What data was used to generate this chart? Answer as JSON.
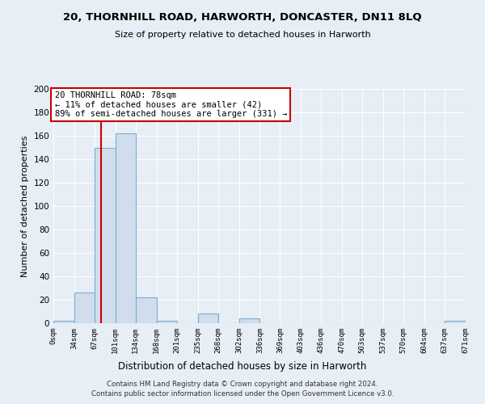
{
  "title": "20, THORNHILL ROAD, HARWORTH, DONCASTER, DN11 8LQ",
  "subtitle": "Size of property relative to detached houses in Harworth",
  "xlabel": "Distribution of detached houses by size in Harworth",
  "ylabel": "Number of detached properties",
  "bin_edges": [
    0,
    34,
    67,
    101,
    134,
    168,
    201,
    235,
    268,
    302,
    336,
    369,
    403,
    436,
    470,
    503,
    537,
    570,
    604,
    637,
    671
  ],
  "bar_heights": [
    2,
    26,
    150,
    162,
    22,
    2,
    0,
    8,
    0,
    4,
    0,
    0,
    0,
    0,
    0,
    0,
    0,
    0,
    0,
    2
  ],
  "bar_color": "#cfdded",
  "bar_edge_color": "#7aaed0",
  "property_size": 78,
  "annotation_line1": "20 THORNHILL ROAD: 78sqm",
  "annotation_line2": "← 11% of detached houses are smaller (42)",
  "annotation_line3": "89% of semi-detached houses are larger (331) →",
  "annotation_box_color": "#ffffff",
  "annotation_box_edge_color": "#cc0000",
  "vline_color": "#cc0000",
  "ylim": [
    0,
    200
  ],
  "yticks": [
    0,
    20,
    40,
    60,
    80,
    100,
    120,
    140,
    160,
    180,
    200
  ],
  "footer_line1": "Contains HM Land Registry data © Crown copyright and database right 2024.",
  "footer_line2": "Contains public sector information licensed under the Open Government Licence v3.0.",
  "bg_color": "#e8eef5",
  "plot_bg_color": "#e8eef5",
  "grid_color": "#ffffff",
  "tick_labels": [
    "0sqm",
    "34sqm",
    "67sqm",
    "101sqm",
    "134sqm",
    "168sqm",
    "201sqm",
    "235sqm",
    "268sqm",
    "302sqm",
    "336sqm",
    "369sqm",
    "403sqm",
    "436sqm",
    "470sqm",
    "503sqm",
    "537sqm",
    "570sqm",
    "604sqm",
    "637sqm",
    "671sqm"
  ]
}
